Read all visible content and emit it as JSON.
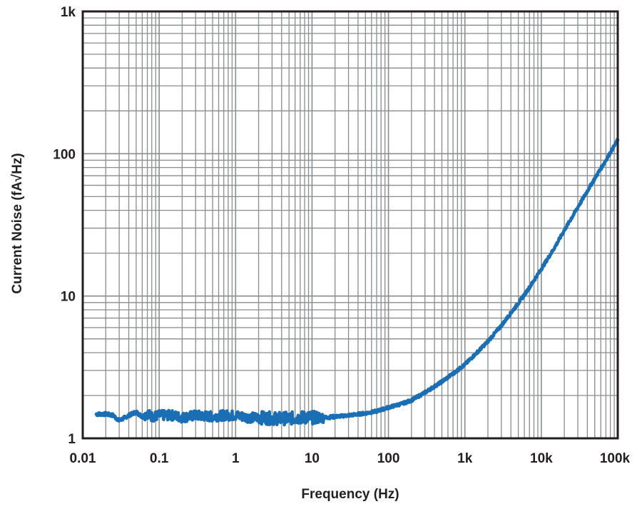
{
  "chart_data": {
    "type": "line",
    "title": "",
    "xlabel": "Frequency (Hz)",
    "ylabel": "Current Noise (fA√Hz)",
    "x_scale": "log",
    "y_scale": "log",
    "xlim": [
      0.01,
      100000
    ],
    "ylim": [
      1,
      1000
    ],
    "grid": true,
    "x_tick_labels": [
      "0.01",
      "0.1",
      "1",
      "10",
      "100",
      "1k",
      "10k",
      "100k"
    ],
    "y_tick_labels": [
      "1",
      "10",
      "100",
      "1k"
    ],
    "series": [
      {
        "color": "#1a6fb4",
        "x": [
          0.015,
          0.02,
          0.025,
          0.03,
          0.04,
          0.05,
          0.06,
          0.07,
          0.08,
          0.1,
          0.15,
          0.2,
          0.3,
          0.5,
          0.7,
          1,
          1.5,
          2,
          3,
          5,
          7,
          10,
          15,
          20,
          30,
          50,
          70,
          100,
          150,
          200,
          300,
          500,
          700,
          1000,
          1500,
          2000,
          3000,
          5000,
          7000,
          10000,
          15000,
          20000,
          30000,
          50000,
          70000,
          100000
        ],
        "y": [
          1.48,
          1.48,
          1.45,
          1.33,
          1.45,
          1.53,
          1.42,
          1.5,
          1.42,
          1.45,
          1.45,
          1.4,
          1.45,
          1.42,
          1.45,
          1.45,
          1.4,
          1.4,
          1.38,
          1.38,
          1.4,
          1.4,
          1.4,
          1.42,
          1.45,
          1.5,
          1.55,
          1.65,
          1.75,
          1.85,
          2.1,
          2.5,
          2.85,
          3.3,
          4.1,
          4.8,
          6.2,
          8.9,
          11.5,
          15.5,
          22,
          29,
          42,
          67,
          90,
          125
        ]
      }
    ]
  },
  "colors": {
    "grid": "#8a8c8e",
    "axis": "#231f20",
    "series": "#1a6fb4"
  }
}
